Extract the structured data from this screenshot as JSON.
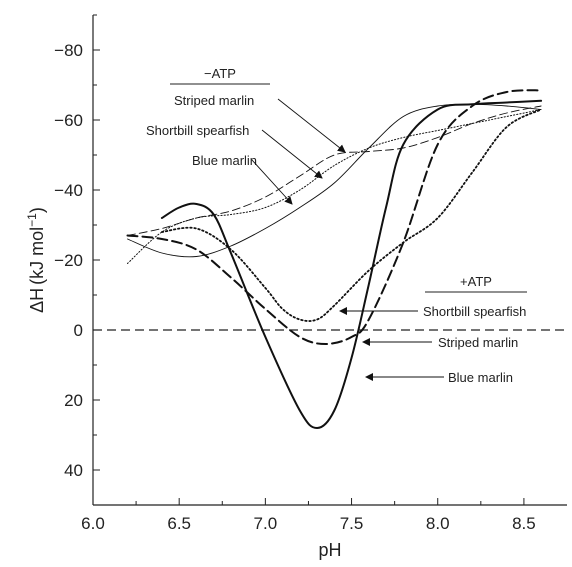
{
  "chart_data": {
    "type": "line",
    "xlabel": "pH",
    "ylabel_delta": "ΔH",
    "ylabel_units": "(kJ mol",
    "ylabel_exp": "−1",
    "ylabel_close": ")",
    "xlim": [
      6.0,
      8.75
    ],
    "ylim": [
      -90,
      50
    ],
    "y_inverted": true,
    "x_ticks": [
      6.0,
      6.5,
      7.0,
      7.5,
      8.0,
      8.5
    ],
    "x_tick_labels": [
      "6.0",
      "6.5",
      "7.0",
      "7.5",
      "8.0",
      "8.5"
    ],
    "y_ticks": [
      -80,
      -60,
      -40,
      -20,
      0,
      20,
      40
    ],
    "y_tick_labels": [
      "−80",
      "−60",
      "−40",
      "−20",
      "0",
      "20",
      "40"
    ],
    "zero_line": {
      "y": 0,
      "style": "dashed"
    },
    "groups": [
      {
        "label": "−ATP",
        "series_labels": [
          "Striped marlin",
          "Shortbill spearfish",
          "Blue marlin"
        ]
      },
      {
        "label": "+ATP",
        "series_labels": [
          "Shortbill spearfish",
          "Striped marlin",
          "Blue marlin"
        ]
      }
    ],
    "series": [
      {
        "group": "−ATP",
        "label": "Striped marlin",
        "style": "thin-dashed",
        "x": [
          6.2,
          6.4,
          6.6,
          6.8,
          7.0,
          7.2,
          7.4,
          7.6,
          7.8,
          8.0,
          8.2,
          8.4,
          8.6
        ],
        "y": [
          -27,
          -29,
          -32,
          -34,
          -38,
          -44,
          -50,
          -51,
          -52,
          -55,
          -59,
          -62,
          -64
        ]
      },
      {
        "group": "−ATP",
        "label": "Shortbill spearfish",
        "style": "dotted-thin",
        "x": [
          6.2,
          6.4,
          6.6,
          6.8,
          7.0,
          7.2,
          7.4,
          7.6,
          7.8,
          8.0,
          8.2,
          8.4,
          8.6
        ],
        "y": [
          -19,
          -28,
          -32,
          -33,
          -35,
          -40,
          -47,
          -52,
          -55,
          -57,
          -59,
          -61,
          -63
        ]
      },
      {
        "group": "−ATP",
        "label": "Blue marlin",
        "style": "thin-solid",
        "x": [
          6.2,
          6.4,
          6.6,
          6.8,
          7.0,
          7.2,
          7.4,
          7.6,
          7.8,
          8.0,
          8.2,
          8.4,
          8.6
        ],
        "y": [
          -26,
          -22,
          -21,
          -24,
          -29,
          -35,
          -42,
          -52,
          -61,
          -64,
          -64.5,
          -64,
          -63
        ]
      },
      {
        "group": "+ATP",
        "label": "Shortbill spearfish",
        "style": "dotted-thick",
        "x": [
          6.4,
          6.6,
          6.8,
          7.0,
          7.1,
          7.2,
          7.3,
          7.4,
          7.6,
          7.8,
          8.0,
          8.2,
          8.4,
          8.6
        ],
        "y": [
          -28,
          -29,
          -23,
          -12,
          -6,
          -3,
          -3,
          -7,
          -17,
          -25,
          -32,
          -45,
          -58,
          -63
        ]
      },
      {
        "group": "+ATP",
        "label": "Striped marlin",
        "style": "dashed-thick",
        "x": [
          6.2,
          6.4,
          6.6,
          6.8,
          7.0,
          7.2,
          7.35,
          7.5,
          7.6,
          7.8,
          8.0,
          8.2,
          8.4,
          8.6
        ],
        "y": [
          -27,
          -26,
          -23,
          -15,
          -6,
          2,
          4,
          2,
          -3,
          -25,
          -53,
          -64,
          -68,
          -68.5
        ]
      },
      {
        "group": "+ATP",
        "label": "Blue marlin",
        "style": "solid-thick",
        "x": [
          6.4,
          6.5,
          6.6,
          6.7,
          6.8,
          7.0,
          7.2,
          7.3,
          7.4,
          7.5,
          7.6,
          7.7,
          7.8,
          8.0,
          8.2,
          8.4,
          8.6
        ],
        "y": [
          -32,
          -35,
          -36,
          -33,
          -22,
          2,
          23,
          28,
          23,
          8,
          -13,
          -35,
          -53,
          -63,
          -64.5,
          -65,
          -65.5
        ]
      }
    ]
  }
}
